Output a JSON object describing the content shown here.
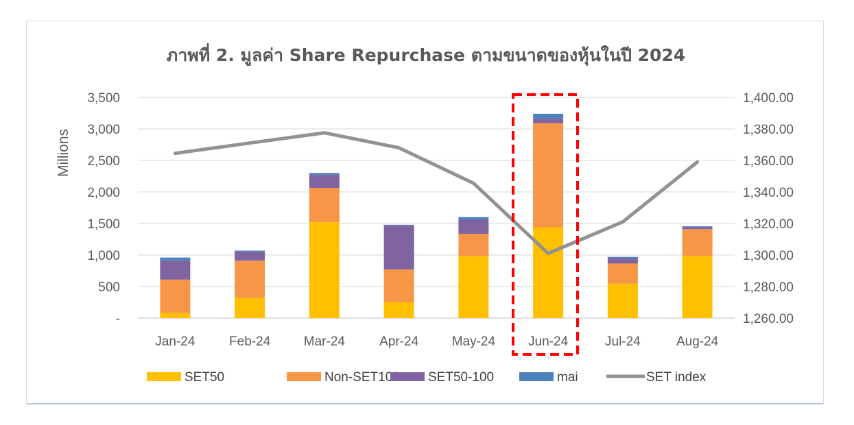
{
  "chart_data": {
    "type": "bar",
    "stacked": true,
    "title": "ภาพที่ 2. มูลค่า Share Repurchase ตามขนาดของหุ้นในปี 2024",
    "ylabel": "Millions",
    "y2label": "",
    "categories": [
      "Jan-24",
      "Feb-24",
      "Mar-24",
      "Apr-24",
      "May-24",
      "Jun-24",
      "Jul-24",
      "Aug-24"
    ],
    "ylim": [
      0,
      3500
    ],
    "yticks": [
      0,
      500,
      1000,
      1500,
      2000,
      2500,
      3000,
      3500
    ],
    "ytick_labels": [
      "-",
      "500",
      "1,000",
      "1,500",
      "2,000",
      "2,500",
      "3,000",
      "3,500"
    ],
    "y2lim": [
      1260,
      1400
    ],
    "y2ticks": [
      1260,
      1280,
      1300,
      1320,
      1340,
      1360,
      1380,
      1400
    ],
    "y2tick_labels": [
      "1,260.00",
      "1,280.00",
      "1,300.00",
      "1,320.00",
      "1,340.00",
      "1,360.00",
      "1,380.00",
      "1,400.00"
    ],
    "grid": true,
    "legend": "bottom",
    "highlight_category": "Jun-24",
    "series": [
      {
        "name": "SET50",
        "kind": "bar",
        "color": "#ffc000",
        "values": [
          80,
          320,
          1520,
          250,
          980,
          1440,
          545,
          985
        ]
      },
      {
        "name": "Non-SET100",
        "kind": "bar",
        "color": "#f79646",
        "values": [
          530,
          590,
          545,
          520,
          355,
          1650,
          320,
          425
        ]
      },
      {
        "name": "SET50-100",
        "kind": "bar",
        "color": "#8064a2",
        "values": [
          300,
          140,
          205,
          700,
          225,
          70,
          85,
          30
        ]
      },
      {
        "name": "mai",
        "kind": "bar",
        "color": "#4f81bd",
        "values": [
          50,
          20,
          30,
          10,
          40,
          80,
          20,
          15
        ]
      },
      {
        "name": "SET index",
        "kind": "line",
        "axis": "right",
        "color": "#929292",
        "values": [
          1364.5,
          1371,
          1377.5,
          1368,
          1345.5,
          1301,
          1321,
          1359
        ]
      }
    ]
  }
}
